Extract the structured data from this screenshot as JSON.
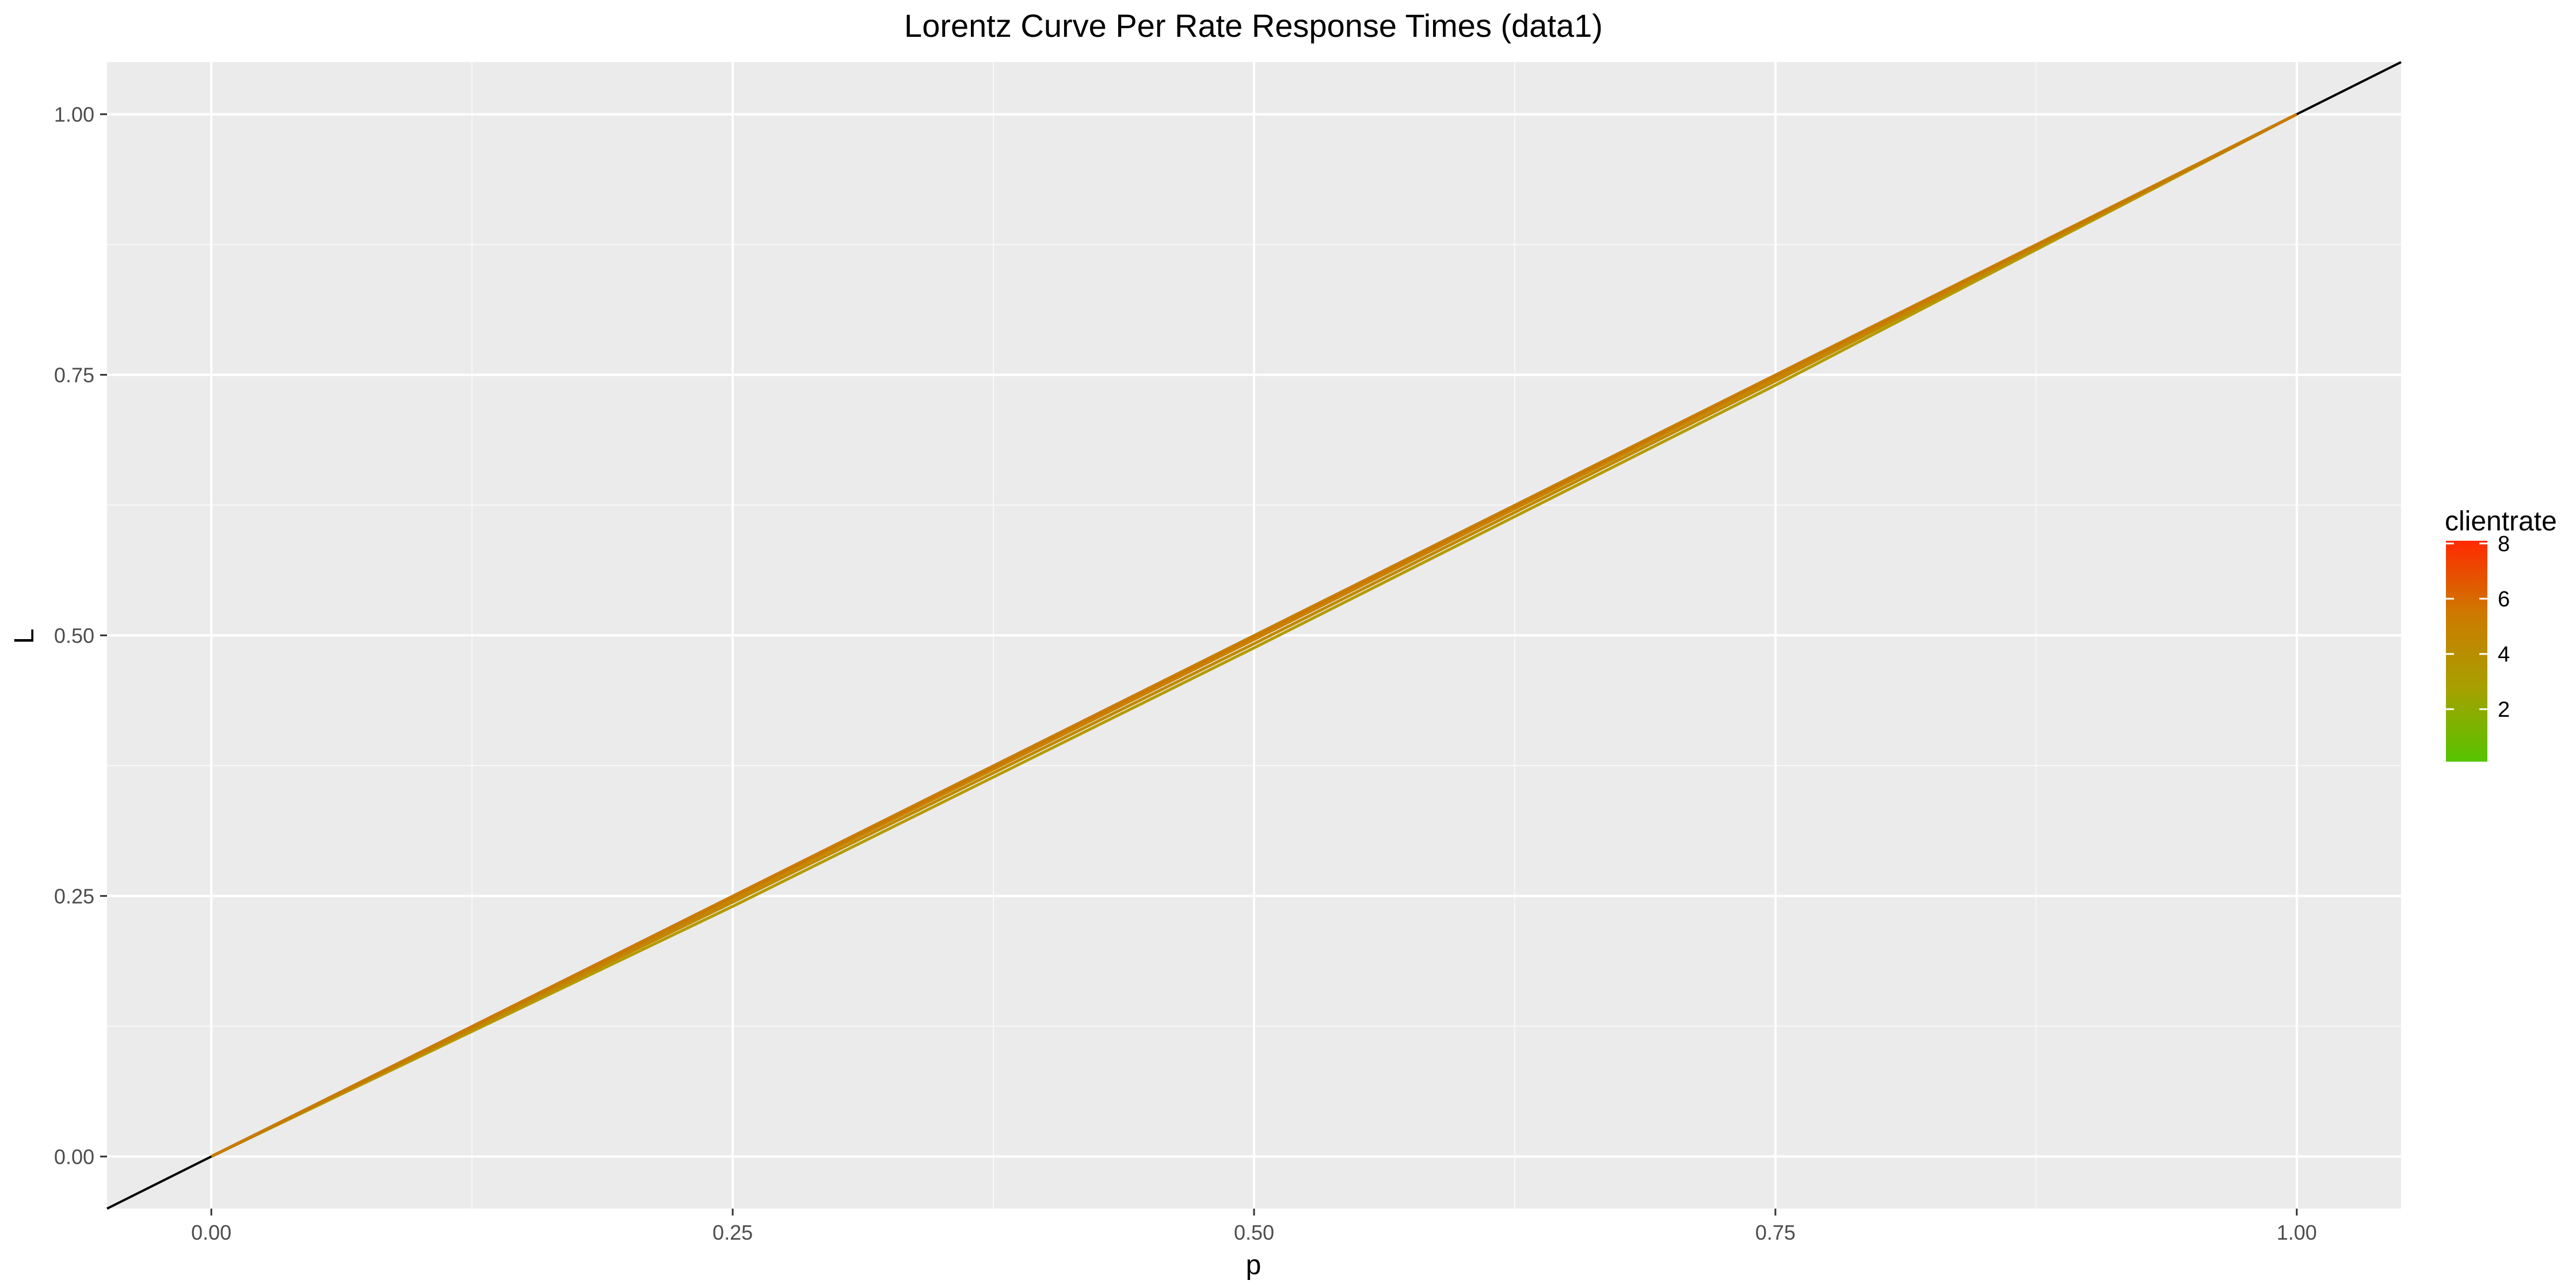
{
  "chart_data": {
    "type": "line",
    "title": "Lorentz Curve Per Rate Response Times (data1)",
    "xlabel": "p",
    "ylabel": "L",
    "xlim": [
      -0.05,
      1.05
    ],
    "ylim": [
      -0.05,
      1.05
    ],
    "x_ticks": [
      "0.00",
      "0.25",
      "0.50",
      "0.75",
      "1.00"
    ],
    "y_ticks": [
      "0.00",
      "0.25",
      "0.50",
      "0.75",
      "1.00"
    ],
    "grid": true,
    "panel_background": "#ebebeb",
    "equality_line": {
      "x": [
        -0.05,
        1.05
      ],
      "y": [
        -0.05,
        1.05
      ],
      "color": "#000000"
    },
    "series": [
      {
        "clientrate": 4,
        "color": "#b59a00",
        "x": [
          0,
          0.25,
          0.5,
          0.75,
          1.0
        ],
        "y": [
          0,
          0.24,
          0.488,
          0.74,
          1.0
        ]
      },
      {
        "clientrate": 5,
        "color": "#c08800",
        "x": [
          0,
          0.25,
          0.5,
          0.75,
          1.0
        ],
        "y": [
          0,
          0.244,
          0.492,
          0.744,
          1.0
        ]
      },
      {
        "clientrate": 6,
        "color": "#c88200",
        "x": [
          0,
          0.25,
          0.5,
          0.75,
          1.0
        ],
        "y": [
          0,
          0.247,
          0.496,
          0.747,
          1.0
        ]
      },
      {
        "clientrate": 7,
        "color": "#cc7d00",
        "x": [
          0,
          0.25,
          0.5,
          0.75,
          1.0
        ],
        "y": [
          0,
          0.249,
          0.498,
          0.749,
          1.0
        ]
      }
    ],
    "legend": {
      "title": "clientrate",
      "placement": "right",
      "range": [
        0.1,
        8.1
      ],
      "ticks": [
        "2",
        "4",
        "6",
        "8"
      ],
      "tick_values": [
        2,
        4,
        6,
        8
      ],
      "gradient": [
        "#56c400",
        "#a6a000",
        "#cd7a00",
        "#ff2a00"
      ]
    }
  }
}
